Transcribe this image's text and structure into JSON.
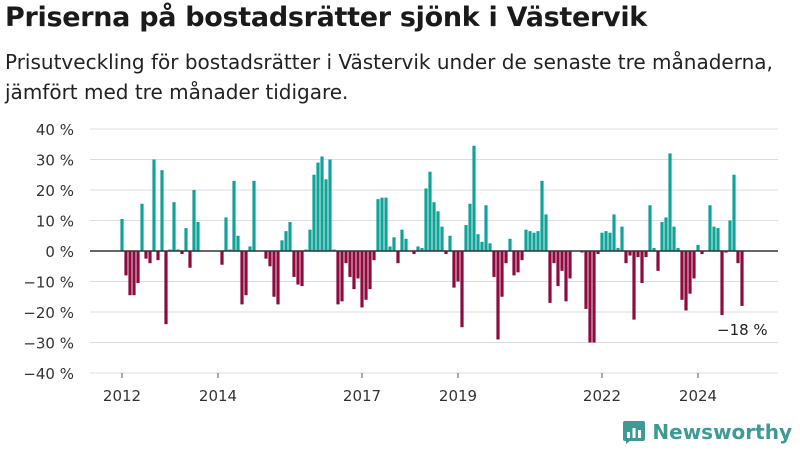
{
  "title": "Priserna på bostadsrätter sjönk i Västervik",
  "subtitle": "Prisutveckling för bostadsrätter i Västervik under de senaste tre månaderna, jämfört med tre månader tidigare.",
  "brand": "Newsworthy",
  "colors": {
    "positive": "#12a398",
    "negative": "#8f0a3e",
    "grid": "#dddddd",
    "axis": "#333333"
  },
  "chart_data": {
    "type": "bar",
    "ylim": [
      -40,
      40
    ],
    "yticks": [
      40,
      30,
      20,
      10,
      0,
      -10,
      -20,
      -30,
      -40
    ],
    "ytick_labels": [
      "40 %",
      "30 %",
      "20 %",
      "10 %",
      "0 %",
      "−10 %",
      "−20 %",
      "−30 %",
      "−40 %"
    ],
    "x_start": "2012-01",
    "xticks": [
      {
        "label": "2012",
        "index": 0
      },
      {
        "label": "2014",
        "index": 24
      },
      {
        "label": "2017",
        "index": 60
      },
      {
        "label": "2019",
        "index": 84
      },
      {
        "label": "2022",
        "index": 120
      },
      {
        "label": "2024",
        "index": 144
      }
    ],
    "values": [
      10.5,
      -8,
      -14.5,
      -14.5,
      -10.5,
      15.5,
      -2.5,
      -4,
      30,
      -3,
      26.5,
      -24,
      0.5,
      16,
      0.5,
      -1,
      7.5,
      -5.5,
      20,
      9.5,
      0,
      0,
      0,
      0,
      0,
      -4.5,
      11,
      0.5,
      23,
      5,
      -17.5,
      -14.5,
      1.5,
      23,
      0,
      0,
      -2.5,
      -5,
      -15,
      -17.5,
      3.5,
      6.5,
      9.5,
      -8.5,
      -11,
      -11.5,
      0.5,
      7,
      25,
      29,
      31,
      23.5,
      30,
      0.5,
      -17.5,
      -16.5,
      -4,
      -8.5,
      -12.5,
      -9,
      -18.5,
      -16,
      -12.5,
      -3,
      17,
      17.5,
      17.5,
      1.5,
      4.5,
      -4,
      7,
      4,
      0,
      -1,
      1.5,
      1,
      20.5,
      26,
      16,
      13,
      8,
      -1,
      5,
      -12,
      -10,
      -25,
      8.5,
      15.5,
      34.5,
      5.5,
      3,
      15,
      2.5,
      -8.5,
      -29,
      -15,
      -4,
      4,
      -8,
      -7,
      -3,
      7,
      6.5,
      6,
      6.5,
      23,
      12,
      -17,
      -4,
      -11.5,
      -6.5,
      -16.5,
      -9,
      0,
      0,
      -0.5,
      -19,
      -30,
      -30,
      -1,
      6,
      6.5,
      6,
      12,
      1,
      8,
      -4,
      -1.5,
      -22.5,
      -2,
      -10.5,
      -2,
      15,
      1,
      -6.5,
      9.5,
      11,
      32,
      8,
      1,
      -16,
      -19.5,
      -14,
      -9,
      2,
      -1,
      0,
      15,
      8,
      7.5,
      -21,
      -0.5,
      10,
      25,
      -4,
      -18
    ],
    "annotation": {
      "text": "−18 %",
      "index": 155
    }
  }
}
